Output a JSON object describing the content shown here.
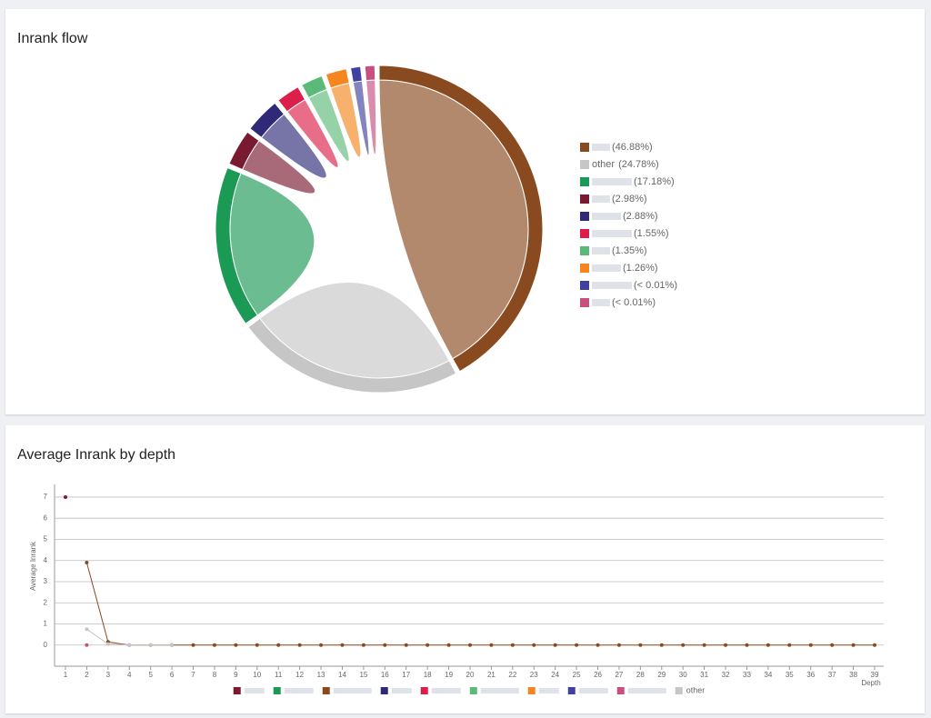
{
  "chart_data": [
    {
      "type": "chord",
      "title": "Inrank flow",
      "categories": [
        null,
        "other",
        null,
        null,
        null,
        null,
        null,
        null,
        null,
        null
      ],
      "values": [
        46.88,
        24.78,
        17.18,
        2.98,
        2.88,
        1.55,
        1.35,
        1.26,
        0.01,
        0.01
      ],
      "value_labels": [
        "(46.88%)",
        "(24.78%)",
        "(17.18%)",
        "(2.98%)",
        "(2.88%)",
        "(1.55%)",
        "(1.35%)",
        "(1.26%)",
        "(< 0.01%)",
        "(< 0.01%)"
      ],
      "colors": [
        "#8a4a1f",
        "#c6c6c6",
        "#1b9a56",
        "#7a1a30",
        "#2e2a78",
        "#dc1f4a",
        "#5cba78",
        "#f5861f",
        "#40409e",
        "#c84f80"
      ]
    },
    {
      "type": "line",
      "title": "Average Inrank by depth",
      "x_label": "Depth",
      "y_label": "Average Inrank",
      "categories": [
        1,
        2,
        3,
        4,
        5,
        6,
        7,
        8,
        9,
        10,
        11,
        12,
        13,
        14,
        15,
        16,
        17,
        18,
        19,
        20,
        21,
        22,
        23,
        24,
        25,
        26,
        27,
        28,
        29,
        30,
        31,
        32,
        33,
        34,
        35,
        36,
        37,
        38,
        39
      ],
      "ylim": [
        -1,
        7.6
      ],
      "yticks": [
        0,
        1,
        2,
        3,
        4,
        5,
        6,
        7
      ],
      "grid": true,
      "series": [
        {
          "name": null,
          "color": "#7a1a30",
          "values": [
            7,
            null,
            null,
            null,
            null,
            null,
            null,
            null,
            null,
            null,
            null,
            null,
            null,
            null,
            null,
            null,
            null,
            null,
            null,
            null,
            null,
            null,
            null,
            null,
            null,
            null,
            null,
            null,
            null,
            null,
            null,
            null,
            null,
            null,
            null,
            null,
            null,
            null,
            null
          ]
        },
        {
          "name": null,
          "color": "#1b9a56",
          "values": [
            null,
            null,
            null,
            null,
            null,
            null,
            null,
            null,
            null,
            null,
            null,
            null,
            null,
            null,
            null,
            null,
            null,
            null,
            null,
            null,
            null,
            null,
            null,
            null,
            null,
            null,
            null,
            null,
            null,
            null,
            null,
            null,
            null,
            null,
            null,
            null,
            null,
            null,
            null
          ]
        },
        {
          "name": null,
          "color": "#8a4a1f",
          "values": [
            null,
            3.9,
            0.15,
            0,
            0,
            0,
            0,
            0,
            0,
            0,
            0,
            0,
            0,
            0,
            0,
            0,
            0,
            0,
            0,
            0,
            0,
            0,
            0,
            0,
            0,
            0,
            0,
            0,
            0,
            0,
            0,
            0,
            0,
            0,
            0,
            0,
            0,
            0,
            0
          ]
        },
        {
          "name": null,
          "color": "#2e2a78",
          "values": [
            null,
            null,
            null,
            null,
            null,
            null,
            null,
            null,
            null,
            null,
            null,
            null,
            null,
            null,
            null,
            null,
            null,
            null,
            null,
            null,
            null,
            null,
            null,
            null,
            null,
            null,
            null,
            null,
            null,
            null,
            null,
            null,
            null,
            null,
            null,
            null,
            null,
            null,
            null
          ]
        },
        {
          "name": null,
          "color": "#dc1f4a",
          "values": [
            null,
            null,
            null,
            null,
            null,
            null,
            null,
            null,
            null,
            null,
            null,
            null,
            null,
            null,
            null,
            null,
            null,
            null,
            null,
            null,
            null,
            null,
            null,
            null,
            null,
            null,
            null,
            null,
            null,
            null,
            null,
            null,
            null,
            null,
            null,
            null,
            null,
            null,
            null
          ]
        },
        {
          "name": null,
          "color": "#5cba78",
          "values": [
            null,
            null,
            null,
            null,
            null,
            null,
            null,
            null,
            null,
            null,
            null,
            null,
            null,
            null,
            null,
            null,
            null,
            null,
            null,
            null,
            null,
            null,
            null,
            null,
            null,
            null,
            null,
            null,
            null,
            null,
            null,
            null,
            null,
            null,
            null,
            null,
            null,
            null,
            null
          ]
        },
        {
          "name": null,
          "color": "#f5861f",
          "values": [
            null,
            null,
            null,
            null,
            null,
            null,
            null,
            null,
            null,
            null,
            null,
            null,
            null,
            null,
            null,
            null,
            null,
            null,
            null,
            null,
            null,
            null,
            null,
            null,
            null,
            null,
            null,
            null,
            null,
            null,
            null,
            null,
            null,
            null,
            null,
            null,
            null,
            null,
            null
          ]
        },
        {
          "name": null,
          "color": "#40409e",
          "values": [
            null,
            null,
            null,
            null,
            null,
            null,
            null,
            null,
            null,
            null,
            null,
            null,
            null,
            null,
            null,
            null,
            null,
            null,
            null,
            null,
            null,
            null,
            null,
            null,
            null,
            null,
            null,
            null,
            null,
            null,
            null,
            null,
            null,
            null,
            null,
            null,
            null,
            null,
            null
          ]
        },
        {
          "name": null,
          "color": "#c84f80",
          "values": [
            null,
            0,
            null,
            null,
            null,
            null,
            null,
            null,
            null,
            null,
            null,
            null,
            null,
            null,
            null,
            null,
            null,
            null,
            null,
            null,
            null,
            null,
            null,
            null,
            null,
            null,
            null,
            null,
            null,
            null,
            null,
            null,
            null,
            null,
            null,
            null,
            null,
            null,
            null
          ]
        },
        {
          "name": "other",
          "color": "#c6c6c6",
          "values": [
            null,
            0.75,
            0.05,
            0,
            0,
            0,
            null,
            null,
            null,
            null,
            null,
            null,
            null,
            null,
            null,
            null,
            null,
            null,
            null,
            null,
            null,
            null,
            null,
            null,
            null,
            null,
            null,
            null,
            null,
            null,
            null,
            null,
            null,
            null,
            null,
            null,
            null,
            null,
            null
          ]
        }
      ]
    }
  ]
}
